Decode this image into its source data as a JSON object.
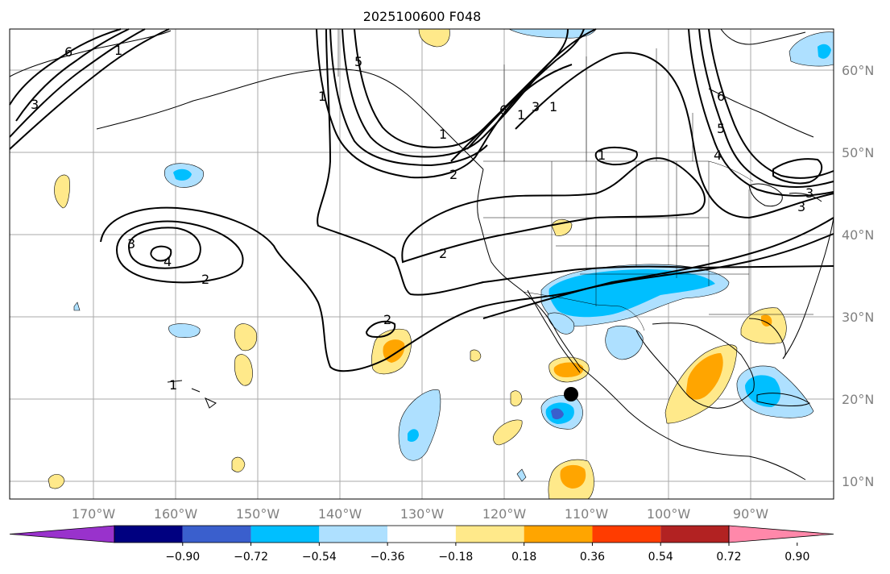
{
  "title": "2025100600 F048",
  "lat_labels": [
    "60°N",
    "50°N",
    "40°N",
    "30°N",
    "20°N",
    "10°N"
  ],
  "lon_labels": [
    "170°W",
    "160°W",
    "150°W",
    "140°W",
    "130°W",
    "120°W",
    "110°W",
    "100°W",
    "90°W"
  ],
  "colorbar": {
    "colors": [
      "#9932cc",
      "#000080",
      "#3a5fcd",
      "#00bfff",
      "#aee0ff",
      "#ffffff",
      "#ffe98a",
      "#ffa500",
      "#ff3c00",
      "#b22222",
      "#ff88aa"
    ],
    "tick_labels": [
      "−0.90",
      "−0.72",
      "−0.54",
      "−0.36",
      "−0.18",
      "0.18",
      "0.36",
      "0.54",
      "0.72",
      "0.90"
    ]
  },
  "contour_labels": [
    "6",
    "1",
    "3",
    "1",
    "2",
    "1",
    "5",
    "6",
    "1",
    "3",
    "1",
    "1",
    "6",
    "5",
    "4",
    "3",
    "3",
    "2",
    "2",
    "3",
    "4",
    "2",
    "2",
    "1"
  ],
  "colors": {
    "land_outline": "#000000",
    "grid": "#aaaaaa",
    "contour": "#000000",
    "marker": "#000000"
  }
}
